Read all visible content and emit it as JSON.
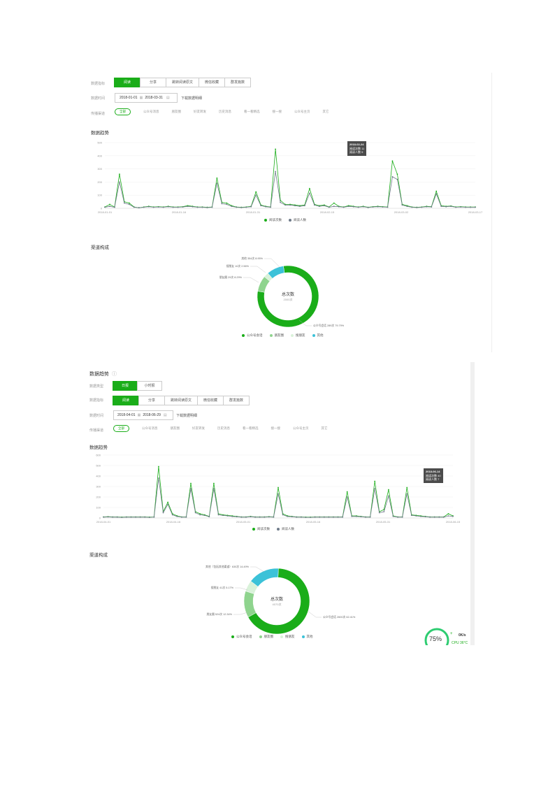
{
  "panel1": {
    "labels": {
      "metric": "数据指标",
      "time": "数据时间",
      "channel": "传播渠道"
    },
    "metrics": [
      "阅读",
      "分享",
      "跳转阅读原文",
      "微信收藏",
      "群发篇数"
    ],
    "active_metric": 0,
    "date_start": "2018-01-01",
    "date_end": "2018-03-31",
    "download": "下载数据明细",
    "channels": [
      "全部",
      "公众号消息",
      "朋友圈",
      "好友转发",
      "历史消息",
      "看一看精选",
      "搜一搜",
      "公众号主页",
      "其它"
    ],
    "trend_title": "数据趋势",
    "tooltip": {
      "date": "2018-02-24",
      "line1": "阅读次数 11",
      "line2": "阅读人数 9"
    },
    "composition_title": "渠道构成",
    "donut_center": {
      "title": "总次数",
      "value": "2000次"
    },
    "donut_labels": [
      "其他 354次 8.95%",
      "搜朋友 10次 2.56%",
      "朋友圈 29次 8.29%",
      "公众号会话 289次 79.79%"
    ]
  },
  "panel2": {
    "section_title": "数据趋势",
    "labels": {
      "type": "数据类型",
      "metric": "数据指标",
      "time": "数据时间",
      "channel": "传播渠道"
    },
    "types": [
      "日报",
      "小时报"
    ],
    "active_type": 0,
    "metrics": [
      "阅读",
      "分享",
      "跳转阅读原文",
      "微信收藏",
      "群发篇数"
    ],
    "active_metric": 0,
    "date_start": "2018-04-01",
    "date_end": "2018-06-29",
    "download": "下载数据明细",
    "channels": [
      "全部",
      "公众号消息",
      "朋友圈",
      "好友转发",
      "历史消息",
      "看一看精选",
      "搜一搜",
      "公众号主页",
      "其它"
    ],
    "trend_title": "数据趋势",
    "tooltip": {
      "date": "2018-06-14",
      "line1": "阅读次数 40",
      "line2": "阅读人数 7"
    },
    "composition_title": "渠道构成",
    "donut_center": {
      "title": "总次数",
      "value": "4070次"
    },
    "donut_labels": [
      "其他（包括其他渠道）630次 14.49%",
      "搜朋友 41次 5.17%",
      "朋友圈 524次 12.34%",
      "公众号会话 2600次 62.41%"
    ]
  },
  "legend_trend": [
    "阅读次数",
    "阅读人数"
  ],
  "legend_donut": [
    "公众号会话",
    "朋友圈",
    "搜朋友",
    "其他"
  ],
  "colors": {
    "green": "#1aad19",
    "grey": "#6f7b8a",
    "light_green": "#8fd48e",
    "pale_green": "#d9f2d9",
    "cyan": "#3cc2d8"
  },
  "cpu_widget": {
    "percent": "75%",
    "rate": "0K/s",
    "cpu": "CPU 36°C"
  },
  "chart_data": [
    {
      "type": "line",
      "title": "数据趋势",
      "ylim": [
        0,
        500
      ],
      "yticks": [
        "500",
        "400",
        "300",
        "200",
        "100",
        "0"
      ],
      "xticks": [
        "2018-01-01",
        "2018-01-16",
        "2018-01-31",
        "2018-02-15",
        "2018-03-02",
        "2018-03-17"
      ],
      "series": [
        {
          "name": "阅读次数",
          "values": [
            10,
            30,
            10,
            260,
            50,
            40,
            10,
            5,
            10,
            15,
            10,
            12,
            10,
            15,
            10,
            10,
            12,
            20,
            15,
            10,
            10,
            8,
            10,
            230,
            45,
            40,
            20,
            10,
            8,
            10,
            15,
            125,
            25,
            15,
            10,
            450,
            60,
            30,
            30,
            25,
            20,
            25,
            150,
            30,
            20,
            25,
            10,
            40,
            15,
            10,
            20,
            15,
            10,
            15,
            8,
            12,
            15,
            12,
            10,
            360,
            260,
            30,
            20,
            10,
            8,
            10,
            15,
            12,
            130,
            20,
            15,
            18,
            10,
            12,
            10,
            10,
            10
          ]
        },
        {
          "name": "阅读人数",
          "values": [
            8,
            15,
            8,
            200,
            40,
            30,
            8,
            4,
            8,
            12,
            8,
            10,
            8,
            12,
            8,
            8,
            10,
            15,
            12,
            8,
            8,
            6,
            8,
            190,
            35,
            30,
            15,
            8,
            6,
            8,
            12,
            100,
            20,
            12,
            8,
            280,
            45,
            25,
            25,
            20,
            15,
            20,
            115,
            25,
            15,
            20,
            8,
            15,
            12,
            8,
            15,
            12,
            8,
            12,
            6,
            10,
            12,
            10,
            8,
            240,
            220,
            25,
            15,
            8,
            6,
            8,
            12,
            10,
            110,
            15,
            12,
            15,
            8,
            10,
            8,
            8,
            8
          ]
        }
      ]
    },
    {
      "type": "pie",
      "title": "渠道构成",
      "slices": [
        {
          "name": "公众号会话",
          "value": 79.79
        },
        {
          "name": "朋友圈",
          "value": 8.29
        },
        {
          "name": "搜朋友",
          "value": 2.56
        },
        {
          "name": "其他",
          "value": 8.95
        }
      ]
    },
    {
      "type": "line",
      "title": "数据趋势",
      "ylim": [
        0,
        600
      ],
      "yticks": [
        "600",
        "500",
        "400",
        "300",
        "200",
        "100",
        "0"
      ],
      "xticks": [
        "2018-04-01",
        "2018-04-16",
        "2018-05-01",
        "2018-05-16",
        "2018-05-31",
        "2018-06-15"
      ],
      "series": [
        {
          "name": "阅读次数",
          "values": [
            10,
            12,
            10,
            10,
            8,
            10,
            10,
            10,
            10,
            10,
            8,
            10,
            490,
            60,
            150,
            40,
            20,
            10,
            10,
            330,
            60,
            40,
            30,
            15,
            330,
            40,
            30,
            25,
            20,
            15,
            10,
            10,
            15,
            10,
            10,
            10,
            12,
            10,
            290,
            40,
            20,
            15,
            10,
            10,
            8,
            8,
            10,
            10,
            10,
            10,
            10,
            10,
            10,
            250,
            20,
            20,
            15,
            10,
            10,
            350,
            60,
            80,
            270,
            20,
            10,
            10,
            290,
            30,
            25,
            20,
            15,
            10,
            10,
            10,
            10,
            40,
            20
          ]
        },
        {
          "name": "阅读人数",
          "values": [
            8,
            10,
            8,
            8,
            6,
            8,
            8,
            8,
            8,
            8,
            6,
            8,
            380,
            50,
            130,
            30,
            15,
            8,
            8,
            280,
            50,
            30,
            25,
            12,
            280,
            30,
            25,
            20,
            15,
            12,
            8,
            8,
            12,
            8,
            8,
            8,
            10,
            8,
            230,
            30,
            15,
            12,
            8,
            8,
            6,
            6,
            8,
            8,
            8,
            8,
            8,
            8,
            8,
            200,
            15,
            15,
            12,
            8,
            8,
            280,
            50,
            60,
            210,
            15,
            8,
            8,
            230,
            25,
            20,
            15,
            12,
            8,
            8,
            8,
            8,
            20,
            15
          ]
        }
      ]
    },
    {
      "type": "pie",
      "title": "渠道构成",
      "slices": [
        {
          "name": "公众号会话",
          "value": 62.41
        },
        {
          "name": "朋友圈",
          "value": 12.34
        },
        {
          "name": "搜朋友",
          "value": 5.17
        },
        {
          "name": "其他",
          "value": 14.49
        }
      ]
    }
  ]
}
